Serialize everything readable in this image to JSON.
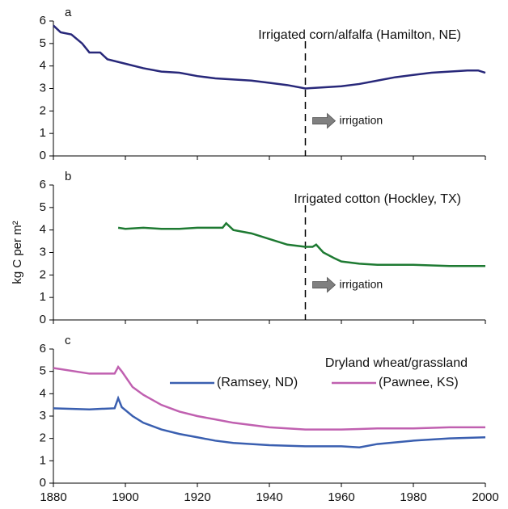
{
  "chart_data": [
    {
      "type": "line",
      "panel": "a",
      "title": "Irrigated corn/alfalfa (Hamilton, NE)",
      "annotation": "irrigation",
      "vline": 1950,
      "x": [
        1880,
        1882,
        1885,
        1888,
        1890,
        1893,
        1895,
        1900,
        1905,
        1910,
        1915,
        1920,
        1925,
        1930,
        1935,
        1940,
        1945,
        1950,
        1955,
        1960,
        1965,
        1970,
        1975,
        1980,
        1985,
        1990,
        1995,
        1998,
        2000
      ],
      "series": [
        {
          "color": "#28287a",
          "values": [
            5.8,
            5.5,
            5.4,
            5.0,
            4.6,
            4.6,
            4.3,
            4.1,
            3.9,
            3.75,
            3.7,
            3.55,
            3.45,
            3.4,
            3.35,
            3.25,
            3.15,
            3.0,
            3.05,
            3.1,
            3.2,
            3.35,
            3.5,
            3.6,
            3.7,
            3.75,
            3.8,
            3.8,
            3.7
          ]
        }
      ],
      "xlim": [
        1880,
        2000
      ],
      "xticks": [
        1880,
        1900,
        1920,
        1940,
        1960,
        1980,
        2000
      ],
      "xticklabels": false,
      "ylim": [
        0,
        6
      ],
      "yticks": [
        0,
        1,
        2,
        3,
        4,
        5,
        6
      ]
    },
    {
      "type": "line",
      "panel": "b",
      "title": "Irrigated cotton (Hockley, TX)",
      "annotation": "irrigation",
      "vline": 1950,
      "ylabel": "kg C per m²",
      "x": [
        1898,
        1900,
        1905,
        1910,
        1915,
        1920,
        1925,
        1927,
        1928,
        1930,
        1935,
        1940,
        1945,
        1950,
        1952,
        1953,
        1955,
        1958,
        1960,
        1965,
        1970,
        1980,
        1990,
        2000
      ],
      "series": [
        {
          "color": "#1e7a32",
          "values": [
            4.1,
            4.05,
            4.1,
            4.05,
            4.05,
            4.1,
            4.1,
            4.1,
            4.3,
            4.0,
            3.85,
            3.6,
            3.35,
            3.25,
            3.25,
            3.35,
            3.0,
            2.75,
            2.6,
            2.5,
            2.45,
            2.45,
            2.4,
            2.4
          ]
        }
      ],
      "xlim": [
        1880,
        2000
      ],
      "xticks": [
        1880,
        1900,
        1920,
        1940,
        1960,
        1980,
        2000
      ],
      "xticklabels": false,
      "ylim": [
        0,
        6
      ],
      "yticks": [
        0,
        1,
        2,
        3,
        4,
        5,
        6
      ]
    },
    {
      "type": "line",
      "panel": "c",
      "title": "Dryland wheat/grassland",
      "x": [
        1880,
        1890,
        1897,
        1898,
        1899,
        1902,
        1905,
        1910,
        1915,
        1920,
        1925,
        1930,
        1940,
        1950,
        1960,
        1965,
        1970,
        1980,
        1990,
        2000
      ],
      "series": [
        {
          "name": "(Ramsey, ND)",
          "color": "#3a5fb0",
          "values": [
            3.35,
            3.3,
            3.35,
            3.8,
            3.4,
            3.0,
            2.7,
            2.4,
            2.2,
            2.05,
            1.9,
            1.8,
            1.7,
            1.65,
            1.65,
            1.6,
            1.75,
            1.9,
            2.0,
            2.05
          ]
        },
        {
          "name": "(Pawnee, KS)",
          "color": "#c060b0",
          "values": [
            5.15,
            4.9,
            4.9,
            5.2,
            5.0,
            4.3,
            3.95,
            3.5,
            3.2,
            3.0,
            2.85,
            2.7,
            2.5,
            2.4,
            2.4,
            2.42,
            2.45,
            2.45,
            2.5,
            2.5
          ]
        }
      ],
      "xlim": [
        1880,
        2000
      ],
      "xticks": [
        1880,
        1900,
        1920,
        1940,
        1960,
        1980,
        2000
      ],
      "xticklabels": true,
      "ylim": [
        0,
        6
      ],
      "yticks": [
        0,
        1,
        2,
        3,
        4,
        5,
        6
      ]
    }
  ]
}
